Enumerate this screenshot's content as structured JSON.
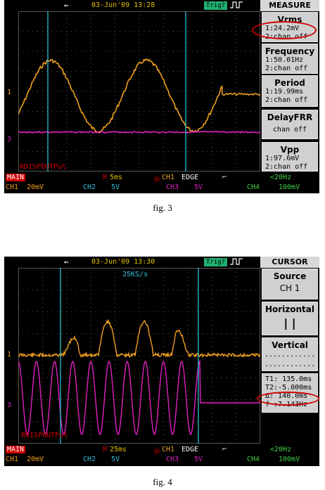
{
  "figures": [
    {
      "caption": "fig. 3",
      "timestamp": "03-Jun'09 13:28",
      "trig_status": "Trig?",
      "menu_title": "MEASURE",
      "measurements": [
        {
          "title": "Vrms",
          "line1": "1:24.2mV",
          "line2": "2:chan off"
        },
        {
          "title": "Frequency",
          "line1": "1:50.01Hz",
          "line2": "2:chan off"
        },
        {
          "title": "Period",
          "line1": "1:19.99ms",
          "line2": "2:chan off"
        },
        {
          "title": "DelayFRR",
          "line1": "",
          "line2": "chan off"
        },
        {
          "title": "Vpp",
          "line1": "1:97.6mV",
          "line2": "2:chan off"
        }
      ],
      "trace_label": "RDISPOUTPut",
      "ch1_marker": "1",
      "ch3_marker": "3",
      "status": {
        "mode": "MAIN",
        "timebase": "5ms",
        "trigger_source": "CH1",
        "trigger_type": "EDGE",
        "trigger_coupling": "<20Hz",
        "ch1": "CH1",
        "ch1_scale": "20mV",
        "ch2": "CH2",
        "ch2_scale": "5V",
        "ch3": "CH3",
        "ch3_scale": "5V",
        "ch4": "CH4",
        "ch4_scale": "100mV"
      }
    },
    {
      "caption": "fig. 4",
      "timestamp": "03-Jun'09 13:30",
      "trig_status": "Trig?",
      "sample_rate": "25KS/s",
      "menu_title": "CURSOR",
      "menu": {
        "source_title": "Source",
        "source_value": "CH 1",
        "horizontal_title": "Horizontal",
        "horizontal_value": "| |",
        "vertical_title": "Vertical",
        "vertical_value": "............"
      },
      "cursor_readout": {
        "t1": "T1: 135.0ms",
        "t2": "T2:-5.000ms",
        "delta": "Δ: 140.0ms",
        "freq": "f :7.143Hz"
      },
      "trace_label": "RDISPOUTPut",
      "ch1_marker": "1",
      "ch3_marker": "3",
      "status": {
        "mode": "MAIN",
        "timebase": "25ms",
        "trigger_source": "CH1",
        "trigger_type": "EDGE",
        "trigger_coupling": "<20Hz",
        "ch1": "CH1",
        "ch1_scale": "20mV",
        "ch2": "CH2",
        "ch2_scale": "5V",
        "ch3": "CH3",
        "ch3_scale": "5V",
        "ch4": "CH4",
        "ch4_scale": "100mV"
      }
    }
  ],
  "colors": {
    "ch1": "#f0a020",
    "ch2": "#30c0e0",
    "ch3": "#e020c0",
    "ch4": "#40d040",
    "cursor": "#30d0e0",
    "highlight": "#d00000"
  },
  "icons": [
    "usb-icon",
    "pulse-icon",
    "trigger-edge-icon",
    "ch1-trigger-icon",
    "timebase-icon"
  ]
}
